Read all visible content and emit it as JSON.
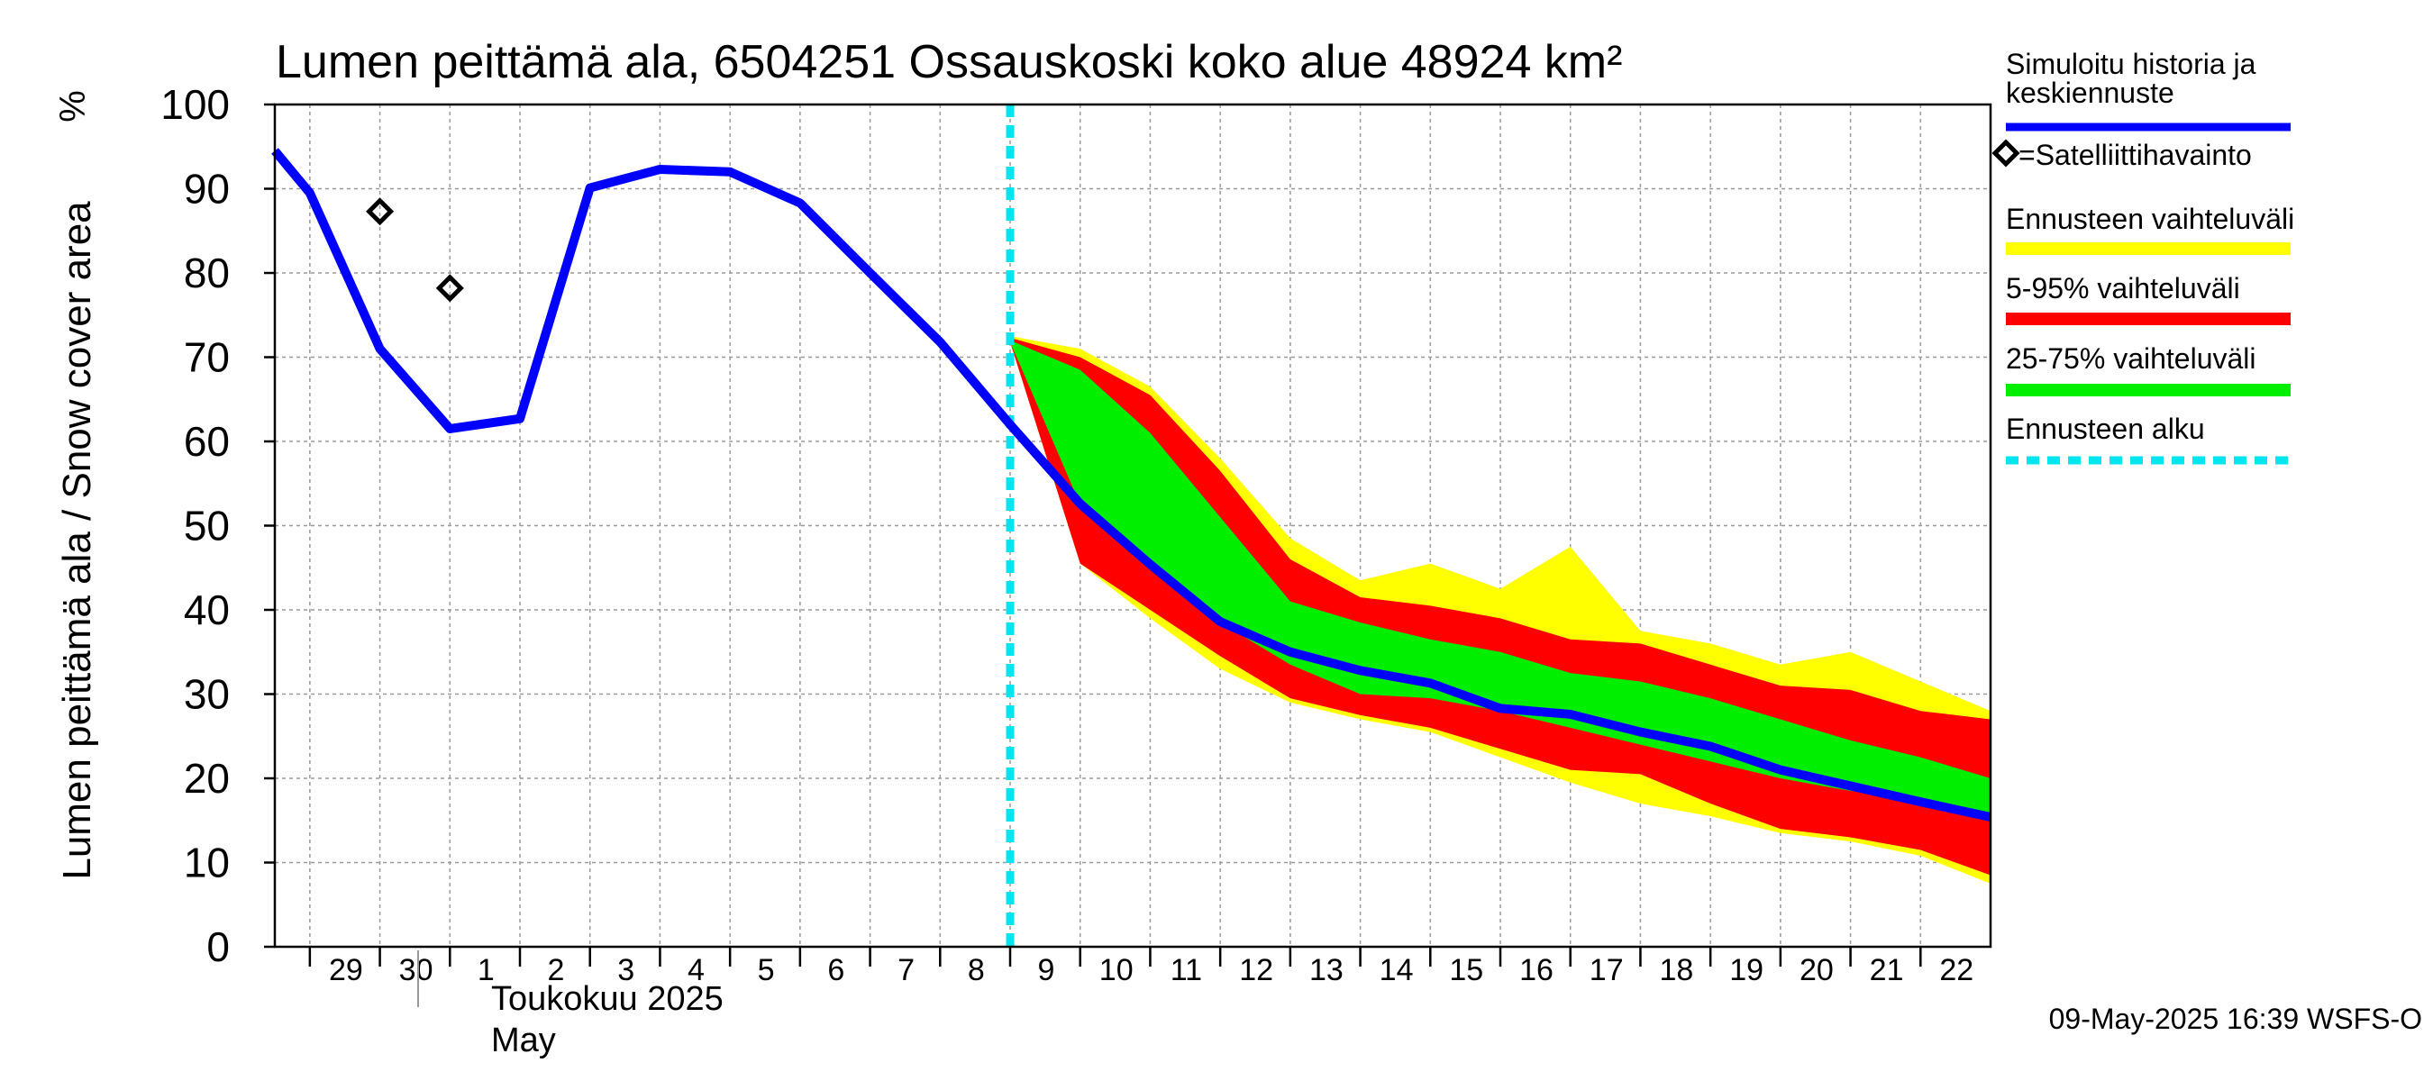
{
  "chart_data": {
    "type": "area",
    "title": "Lumen peittämä ala, 6504251 Ossauskoski koko alue 48924 km²",
    "ylabel": "Lumen peittämä ala / Snow cover area",
    "yunit": "%",
    "ylim": [
      0,
      100
    ],
    "yticks": [
      0,
      10,
      20,
      30,
      40,
      50,
      60,
      70,
      80,
      90,
      100
    ],
    "xlim": [
      "2025-04-28T12:00",
      "2025-05-23"
    ],
    "x_tick_labels": [
      "29",
      "30",
      "1",
      "2",
      "3",
      "4",
      "5",
      "6",
      "7",
      "8",
      "9",
      "10",
      "11",
      "12",
      "13",
      "14",
      "15",
      "16",
      "17",
      "18",
      "19",
      "20",
      "21",
      "22"
    ],
    "month_label_fi": "Toukokuu 2025",
    "month_label_en": "May",
    "grid": true,
    "legend_position": "right",
    "forecast_start": "2025-05-09",
    "series": [
      {
        "name": "Simuloitu historia ja keskiennuste",
        "color": "#0000ff",
        "x": [
          "2025-04-28T12:00",
          "2025-04-29",
          "2025-04-30",
          "2025-05-01",
          "2025-05-02",
          "2025-05-03",
          "2025-05-04",
          "2025-05-05",
          "2025-05-06",
          "2025-05-07",
          "2025-05-08",
          "2025-05-09",
          "2025-05-10",
          "2025-05-11",
          "2025-05-12",
          "2025-05-13",
          "2025-05-14",
          "2025-05-15",
          "2025-05-16",
          "2025-05-17",
          "2025-05-18",
          "2025-05-19",
          "2025-05-20",
          "2025-05-21",
          "2025-05-22",
          "2025-05-23"
        ],
        "values": [
          94.5,
          89.5,
          71,
          61.5,
          62.7,
          90.1,
          92.3,
          92.0,
          88.3,
          80.0,
          71.8,
          62.0,
          52.6,
          45.4,
          38.6,
          35.0,
          32.8,
          31.3,
          28.3,
          27.6,
          25.5,
          23.8,
          21.0,
          19.1,
          17.2,
          15.4
        ]
      },
      {
        "name": "=Satelliittihavainto",
        "type": "scatter",
        "color": "#000000",
        "x": [
          "2025-04-30",
          "2025-05-01"
        ],
        "values": [
          87.3,
          78.2
        ]
      },
      {
        "name": "Ennusteen vaihteluväli",
        "type": "band",
        "color": "#ffff00",
        "x": [
          "2025-05-09",
          "2025-05-10",
          "2025-05-11",
          "2025-05-12",
          "2025-05-13",
          "2025-05-14",
          "2025-05-15",
          "2025-05-16",
          "2025-05-17",
          "2025-05-18",
          "2025-05-19",
          "2025-05-20",
          "2025-05-21",
          "2025-05-22",
          "2025-05-23"
        ],
        "upper": [
          72.5,
          71.0,
          66.5,
          58.0,
          48.5,
          43.5,
          45.5,
          42.5,
          47.5,
          37.5,
          36.0,
          33.5,
          35.0,
          31.5,
          28.0
        ],
        "lower": [
          71.8,
          45.5,
          39.0,
          33.0,
          29.0,
          27.0,
          25.5,
          22.5,
          19.5,
          17.0,
          15.5,
          13.5,
          12.5,
          10.8,
          7.5
        ]
      },
      {
        "name": "5-95% vaihteluväli",
        "type": "band",
        "color": "#ff0000",
        "x": [
          "2025-05-09",
          "2025-05-10",
          "2025-05-11",
          "2025-05-12",
          "2025-05-13",
          "2025-05-14",
          "2025-05-15",
          "2025-05-16",
          "2025-05-17",
          "2025-05-18",
          "2025-05-19",
          "2025-05-20",
          "2025-05-21",
          "2025-05-22",
          "2025-05-23"
        ],
        "upper": [
          72.3,
          70.0,
          65.5,
          56.5,
          46.0,
          41.5,
          40.5,
          39.0,
          36.5,
          36.0,
          33.5,
          31.0,
          30.5,
          28.0,
          27.0
        ],
        "lower": [
          71.8,
          45.5,
          40.0,
          34.5,
          29.5,
          27.5,
          26.0,
          23.5,
          21.0,
          20.5,
          17.0,
          14.0,
          13.0,
          11.5,
          8.5
        ]
      },
      {
        "name": "25-75% vaihteluväli",
        "type": "band",
        "color": "#00ee00",
        "x": [
          "2025-05-09",
          "2025-05-10",
          "2025-05-11",
          "2025-05-12",
          "2025-05-13",
          "2025-05-14",
          "2025-05-15",
          "2025-05-16",
          "2025-05-17",
          "2025-05-18",
          "2025-05-19",
          "2025-05-20",
          "2025-05-21",
          "2025-05-22",
          "2025-05-23"
        ],
        "upper": [
          72.0,
          68.5,
          61.0,
          51.0,
          41.0,
          38.5,
          36.5,
          35.0,
          32.5,
          31.5,
          29.5,
          27.0,
          24.5,
          22.5,
          20.0
        ],
        "lower": [
          71.8,
          52.5,
          45.5,
          38.5,
          33.5,
          30.0,
          29.5,
          28.0,
          26.0,
          24.0,
          22.0,
          20.0,
          18.5,
          17.5,
          15.5
        ]
      },
      {
        "name": "Ennusteen alku",
        "type": "vline",
        "color": "#00e5ee",
        "x": "2025-05-09"
      }
    ]
  },
  "legend": [
    {
      "label": "Simuloitu historia ja keskiennuste",
      "color": "#0000ff",
      "style": "line"
    },
    {
      "label": "=Satelliittihavainto",
      "color": "#000000",
      "style": "marker"
    },
    {
      "label": "Ennusteen vaihteluväli",
      "color": "#ffff00",
      "style": "band"
    },
    {
      "label": "5-95% vaihteluväli",
      "color": "#ff0000",
      "style": "band"
    },
    {
      "label": "25-75% vaihteluväli",
      "color": "#00ee00",
      "style": "band"
    },
    {
      "label": "Ennusteen alku",
      "color": "#00e5ee",
      "style": "dashed"
    }
  ],
  "footer_text": "09-May-2025 16:39 WSFS-O"
}
